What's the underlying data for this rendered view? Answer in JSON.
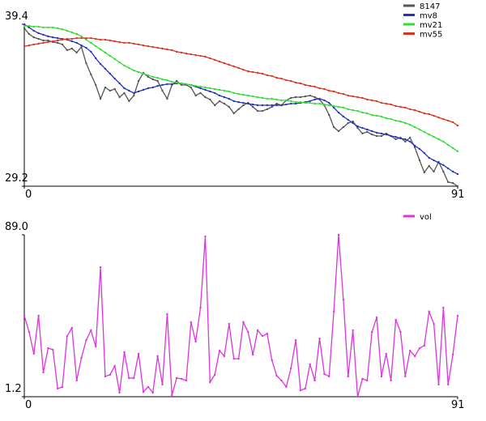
{
  "chart_data": [
    {
      "type": "line",
      "xlim": [
        0,
        91
      ],
      "xticks": [
        0,
        91
      ],
      "ylim": [
        29.2,
        39.4
      ],
      "yticks": [
        29.2,
        39.4
      ],
      "legend": "upper right",
      "series": [
        {
          "name": "8147",
          "color": "#555555",
          "values": [
            39.15,
            38.79,
            38.58,
            38.48,
            38.38,
            38.38,
            38.28,
            38.23,
            38.13,
            37.77,
            37.87,
            37.62,
            37.97,
            36.95,
            36.24,
            35.58,
            34.71,
            35.42,
            35.22,
            35.32,
            34.81,
            35.07,
            34.56,
            34.91,
            35.83,
            36.34,
            36.09,
            35.93,
            35.83,
            35.22,
            34.71,
            35.58,
            35.83,
            35.58,
            35.58,
            35.42,
            34.91,
            35.07,
            34.81,
            34.66,
            34.3,
            34.56,
            34.4,
            34.2,
            33.79,
            34.05,
            34.3,
            34.45,
            34.2,
            33.94,
            33.94,
            34.05,
            34.2,
            34.4,
            34.3,
            34.61,
            34.76,
            34.81,
            34.81,
            34.86,
            34.91,
            34.81,
            34.66,
            34.3,
            33.69,
            32.92,
            32.67,
            32.92,
            33.18,
            33.28,
            32.87,
            32.52,
            32.62,
            32.46,
            32.36,
            32.36,
            32.52,
            32.36,
            32.16,
            32.26,
            32.01,
            32.26,
            31.65,
            30.83,
            30.07,
            30.48,
            30.12,
            30.73,
            30.12,
            29.46,
            29.4,
            29.2
          ]
        },
        {
          "name": "mv8",
          "color": "#2233bb",
          "values": [
            39.4,
            39.2,
            38.99,
            38.84,
            38.74,
            38.64,
            38.58,
            38.53,
            38.48,
            38.43,
            38.33,
            38.23,
            38.07,
            37.92,
            37.67,
            37.26,
            36.9,
            36.6,
            36.29,
            35.98,
            35.68,
            35.37,
            35.22,
            35.07,
            35.17,
            35.27,
            35.37,
            35.42,
            35.52,
            35.58,
            35.63,
            35.63,
            35.68,
            35.68,
            35.63,
            35.58,
            35.47,
            35.37,
            35.27,
            35.17,
            35.07,
            34.91,
            34.81,
            34.71,
            34.56,
            34.5,
            34.45,
            34.4,
            34.35,
            34.3,
            34.3,
            34.3,
            34.3,
            34.3,
            34.3,
            34.35,
            34.4,
            34.4,
            34.45,
            34.5,
            34.56,
            34.66,
            34.71,
            34.61,
            34.45,
            34.15,
            33.84,
            33.59,
            33.38,
            33.18,
            32.97,
            32.87,
            32.77,
            32.67,
            32.57,
            32.52,
            32.46,
            32.36,
            32.31,
            32.21,
            32.16,
            32.01,
            31.75,
            31.55,
            31.29,
            30.99,
            30.83,
            30.68,
            30.53,
            30.32,
            30.12,
            29.96
          ]
        },
        {
          "name": "mv21",
          "color": "#33dd33",
          "values": [
            39.3,
            39.3,
            39.25,
            39.25,
            39.2,
            39.2,
            39.2,
            39.15,
            39.09,
            38.99,
            38.89,
            38.79,
            38.64,
            38.43,
            38.23,
            38.02,
            37.82,
            37.62,
            37.41,
            37.21,
            37.0,
            36.8,
            36.65,
            36.49,
            36.39,
            36.29,
            36.19,
            36.09,
            36.03,
            35.93,
            35.88,
            35.78,
            35.73,
            35.68,
            35.63,
            35.58,
            35.52,
            35.47,
            35.42,
            35.37,
            35.32,
            35.27,
            35.22,
            35.17,
            35.07,
            35.01,
            34.96,
            34.91,
            34.86,
            34.81,
            34.76,
            34.71,
            34.71,
            34.66,
            34.61,
            34.61,
            34.56,
            34.5,
            34.5,
            34.45,
            34.45,
            34.4,
            34.4,
            34.35,
            34.3,
            34.25,
            34.2,
            34.15,
            34.05,
            33.99,
            33.94,
            33.84,
            33.79,
            33.69,
            33.64,
            33.59,
            33.48,
            33.43,
            33.33,
            33.28,
            33.18,
            33.08,
            32.92,
            32.77,
            32.62,
            32.46,
            32.31,
            32.16,
            32.01,
            31.8,
            31.6,
            31.4
          ]
        },
        {
          "name": "mv55",
          "color": "#dd3322",
          "values": [
            38.02,
            38.07,
            38.13,
            38.18,
            38.23,
            38.28,
            38.33,
            38.38,
            38.43,
            38.48,
            38.48,
            38.53,
            38.53,
            38.53,
            38.53,
            38.48,
            38.43,
            38.43,
            38.38,
            38.33,
            38.28,
            38.23,
            38.23,
            38.18,
            38.13,
            38.07,
            38.02,
            37.97,
            37.92,
            37.87,
            37.82,
            37.77,
            37.67,
            37.62,
            37.56,
            37.51,
            37.46,
            37.41,
            37.36,
            37.26,
            37.16,
            37.05,
            36.95,
            36.85,
            36.75,
            36.65,
            36.54,
            36.44,
            36.39,
            36.34,
            36.29,
            36.19,
            36.14,
            36.03,
            35.98,
            35.88,
            35.83,
            35.73,
            35.68,
            35.58,
            35.52,
            35.47,
            35.37,
            35.32,
            35.22,
            35.17,
            35.07,
            35.01,
            34.91,
            34.86,
            34.81,
            34.76,
            34.66,
            34.61,
            34.56,
            34.45,
            34.4,
            34.35,
            34.25,
            34.2,
            34.15,
            34.05,
            33.99,
            33.89,
            33.79,
            33.74,
            33.64,
            33.53,
            33.43,
            33.33,
            33.23,
            33.02
          ]
        }
      ]
    },
    {
      "type": "line",
      "xlim": [
        0,
        91
      ],
      "xticks": [
        0,
        91
      ],
      "ylim": [
        1.2,
        89.0
      ],
      "yticks": [
        1.2,
        {
          "value": 89.0,
          "label": "89.0"
        }
      ],
      "legend": "upper right",
      "series": [
        {
          "name": "vol",
          "color": "#dd33dd",
          "values": [
            45.1,
            36.3,
            24.5,
            45.1,
            14.4,
            27.5,
            26.7,
            5.6,
            6.5,
            34.1,
            38.5,
            10.0,
            22.3,
            31.9,
            37.2,
            28.4,
            71.4,
            12.2,
            13.1,
            17.9,
            3.4,
            25.3,
            11.3,
            11.3,
            24.5,
            3.8,
            6.5,
            3.4,
            23.2,
            7.8,
            46.0,
            2.1,
            11.3,
            10.9,
            10.0,
            41.6,
            31.1,
            49.5,
            88.1,
            9.1,
            13.1,
            26.2,
            23.2,
            40.7,
            21.8,
            21.8,
            41.6,
            36.3,
            24.0,
            37.2,
            34.1,
            35.4,
            21.0,
            12.6,
            10.0,
            6.5,
            16.6,
            31.9,
            4.7,
            5.6,
            18.8,
            10.0,
            32.8,
            13.5,
            12.2,
            47.3,
            89.0,
            53.9,
            12.2,
            37.2,
            1.2,
            10.9,
            10.0,
            36.3,
            44.2,
            12.2,
            24.5,
            10.0,
            42.9,
            36.3,
            12.2,
            26.2,
            23.2,
            27.5,
            28.9,
            47.3,
            40.7,
            7.8,
            49.5,
            7.8,
            24.0,
            45.1
          ]
        }
      ]
    }
  ]
}
